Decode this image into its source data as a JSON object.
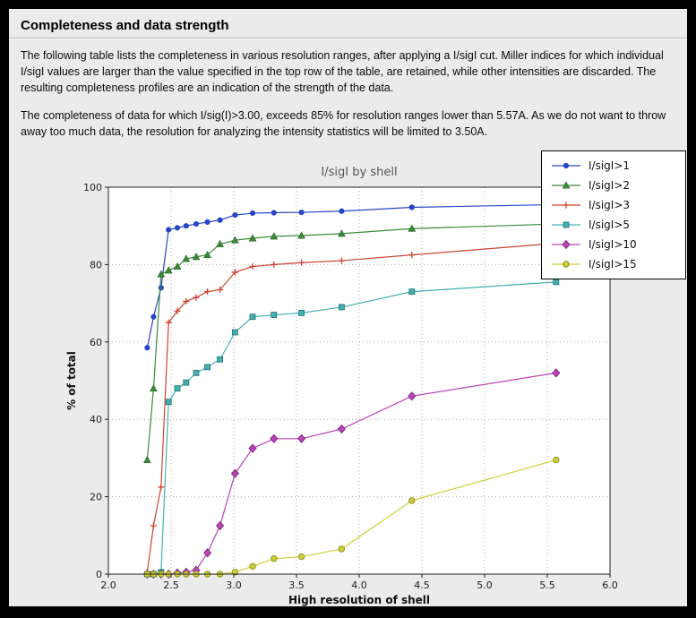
{
  "window": {
    "title": "Completeness and data strength"
  },
  "paragraphs": {
    "p1": "The following table lists the completeness in various resolution ranges, after applying a I/sigI cut. Miller indices for which individual I/sigI values are larger than the value specified in the top row of the table, are retained, while other intensities are discarded. The resulting completeness profiles are an indication of the strength of the data.",
    "p2": "The completeness of data for which I/sig(I)>3.00, exceeds  85% for resolution ranges lower than 5.57A. As we do not want to throw away too much data, the resolution for analyzing the intensity statistics will be limited to 3.50A."
  },
  "chart_data": {
    "type": "line",
    "title": "I/sigI by shell",
    "xlabel": "High resolution of shell",
    "ylabel": "% of total",
    "xlim": [
      2.0,
      6.0
    ],
    "ylim": [
      0,
      100
    ],
    "xticks": [
      2.0,
      2.5,
      3.0,
      3.5,
      4.0,
      4.5,
      5.0,
      5.5,
      6.0
    ],
    "yticks": [
      0,
      20,
      40,
      60,
      80,
      100
    ],
    "grid": true,
    "legend_position": "top-right-outside",
    "x": [
      2.31,
      2.36,
      2.42,
      2.48,
      2.55,
      2.62,
      2.7,
      2.79,
      2.89,
      3.01,
      3.15,
      3.32,
      3.54,
      3.86,
      4.42,
      5.57
    ],
    "series": [
      {
        "name": "I/sigI>1",
        "color": "#2746c4",
        "edge": "#2746c4",
        "marker": "circle",
        "values": [
          58.5,
          66.5,
          74.0,
          89.0,
          89.5,
          90.0,
          90.5,
          91.0,
          91.5,
          92.8,
          93.3,
          93.4,
          93.5,
          93.8,
          94.8,
          95.5
        ]
      },
      {
        "name": "I/sigI>2",
        "color": "#3a8a3a",
        "edge": "#1e5c1e",
        "marker": "triangle",
        "values": [
          29.5,
          48.0,
          77.5,
          78.5,
          79.5,
          81.5,
          82.0,
          82.5,
          85.3,
          86.3,
          86.8,
          87.3,
          87.5,
          88.0,
          89.3,
          90.5
        ]
      },
      {
        "name": "I/sigI>3",
        "color": "#cc4433",
        "edge": "#cc4433",
        "marker": "plus",
        "values": [
          0.5,
          12.5,
          22.5,
          65.0,
          68.0,
          70.5,
          71.5,
          73.0,
          73.5,
          78.0,
          79.5,
          80.0,
          80.5,
          81.0,
          82.5,
          85.5
        ]
      },
      {
        "name": "I/sigI>5",
        "color": "#45b0b0",
        "edge": "#1f6f6f",
        "marker": "square",
        "values": [
          0.0,
          0.0,
          0.5,
          44.5,
          48.0,
          49.5,
          52.0,
          53.5,
          55.5,
          62.5,
          66.5,
          67.0,
          67.5,
          69.0,
          73.0,
          75.5
        ]
      },
      {
        "name": "I/sigI>10",
        "color": "#bb44bb",
        "edge": "#6f1f6f",
        "marker": "diamond",
        "values": [
          0.0,
          0.0,
          0.0,
          0.0,
          0.3,
          0.5,
          1.0,
          5.5,
          12.5,
          26.0,
          32.5,
          35.0,
          35.0,
          37.5,
          46.0,
          52.0
        ]
      },
      {
        "name": "I/sigI>15",
        "color": "#cfcf3a",
        "edge": "#8f8f1f",
        "marker": "circle-open",
        "values": [
          0.0,
          0.0,
          0.0,
          0.0,
          0.0,
          0.0,
          0.0,
          0.0,
          0.0,
          0.5,
          2.0,
          4.0,
          4.5,
          6.5,
          19.0,
          29.5
        ]
      }
    ]
  }
}
